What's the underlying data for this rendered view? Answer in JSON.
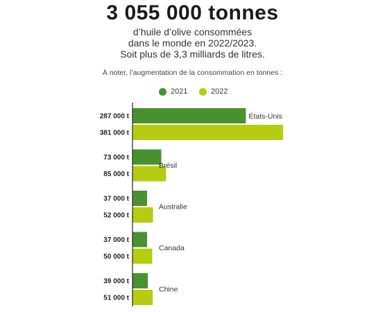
{
  "header": {
    "headline": "3 055 000 tonnes",
    "line1": "d’huile d’olive consommées",
    "line2": "dans le monde en 2022/2023.",
    "line3": "Soit plus de 3,3 milliards de litres."
  },
  "note": "À noter, l’augmentation de la consommation en tonnes :",
  "colors": {
    "series_2021": "#4a9131",
    "series_2022": "#b5cc10",
    "axis": "#222222"
  },
  "chart_data": {
    "type": "bar",
    "orientation": "horizontal",
    "title": "",
    "xlabel": "",
    "ylabel": "",
    "categories": [
      "États-Unis",
      "Brésil",
      "Australie",
      "Canada",
      "Chine"
    ],
    "series": [
      {
        "name": "2021",
        "values": [
          287000,
          73000,
          37000,
          37000,
          39000
        ],
        "labels": [
          "287 000 t",
          "73 000 t",
          "37 000 t",
          "37 000 t",
          "39 000 t"
        ]
      },
      {
        "name": "2022",
        "values": [
          381000,
          85000,
          52000,
          50000,
          51000
        ],
        "labels": [
          "381 000 t",
          "85 000 t",
          "52 000 t",
          "50 000 t",
          "51 000 t"
        ]
      }
    ],
    "xlim": [
      0,
      381000
    ],
    "legend_position": "top-center",
    "grid": false
  }
}
